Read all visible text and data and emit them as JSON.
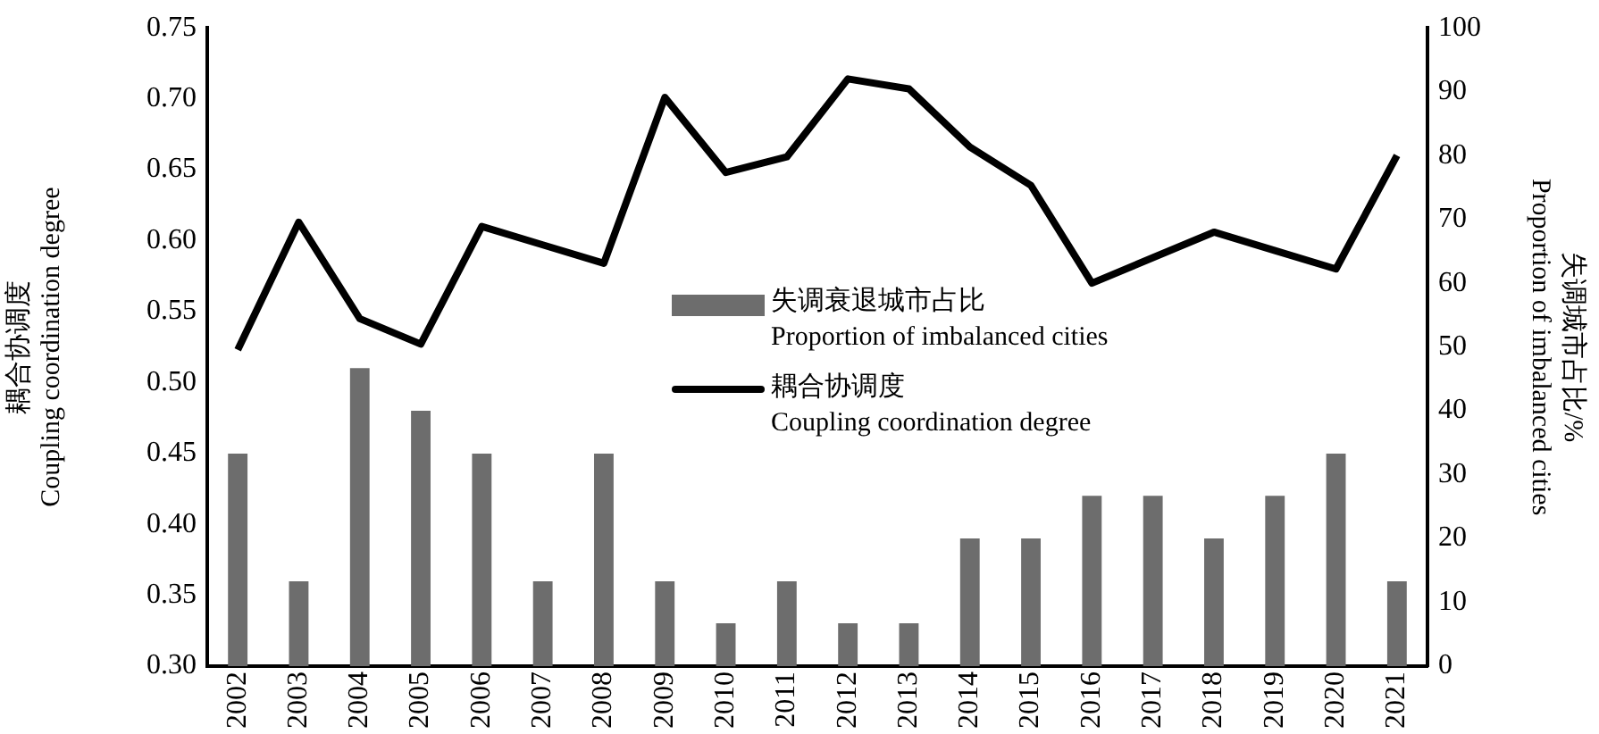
{
  "chart_data": {
    "type": "bar",
    "categories": [
      "2002",
      "2003",
      "2004",
      "2005",
      "2006",
      "2007",
      "2008",
      "2009",
      "2010",
      "2011",
      "2012",
      "2013",
      "2014",
      "2015",
      "2016",
      "2017",
      "2018",
      "2019",
      "2020",
      "2021"
    ],
    "series": [
      {
        "name": "失调衰退城市占比\nProportion of imbalanced cities",
        "color": "#6d6d6d",
        "axis": "y2",
        "values": [
          33.3,
          13.3,
          46.7,
          40.0,
          33.3,
          13.3,
          33.3,
          13.3,
          6.7,
          13.3,
          6.7,
          6.7,
          20.0,
          20.0,
          26.7,
          26.7,
          20.0,
          26.7,
          33.3,
          13.3
        ]
      },
      {
        "type": "line",
        "name": "耦合协调度\nCoupling coordination degree",
        "color": "#000000",
        "values": [
          0.523,
          0.613,
          0.545,
          0.527,
          0.61,
          0.597,
          0.584,
          0.701,
          0.648,
          0.659,
          0.714,
          0.707,
          0.666,
          0.639,
          0.57,
          0.588,
          0.606,
          0.593,
          0.58,
          0.66
        ]
      }
    ],
    "ylabel": "耦合协调度\nCoupling coordination degree",
    "y2label": "失调城市占比/%\nProportion of imbalanced cities",
    "ylim": [
      0.3,
      0.75
    ],
    "yticks": [
      {
        "value": 0.3,
        "label": "0.30"
      },
      {
        "value": 0.35,
        "label": "0.35"
      },
      {
        "value": 0.4,
        "label": "0.40"
      },
      {
        "value": 0.45,
        "label": "0.45"
      },
      {
        "value": 0.5,
        "label": "0.50"
      },
      {
        "value": 0.55,
        "label": "0.55"
      },
      {
        "value": 0.6,
        "label": "0.60"
      },
      {
        "value": 0.65,
        "label": "0.65"
      },
      {
        "value": 0.7,
        "label": "0.70"
      },
      {
        "value": 0.75,
        "label": "0.75"
      }
    ],
    "y2lim": [
      0,
      100
    ],
    "y2ticks": [
      0,
      10,
      20,
      30,
      40,
      50,
      60,
      70,
      80,
      90,
      100
    ],
    "grid": false,
    "legend": "center",
    "marker": "none",
    "line_style": "solid"
  }
}
